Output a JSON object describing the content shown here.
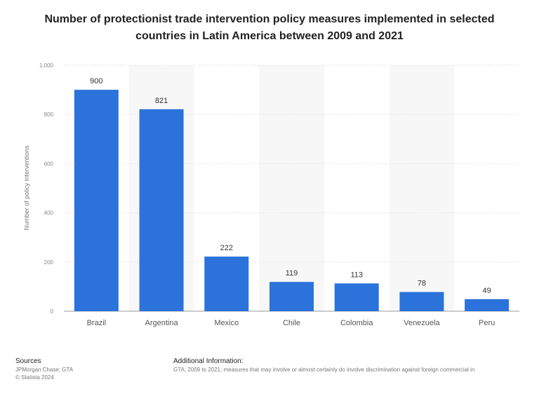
{
  "chart_data": {
    "type": "bar",
    "title": "Number of protectionist trade intervention policy measures implemented in selected countries in Latin America between 2009 and 2021",
    "xlabel": "",
    "ylabel": "Number of policy interventions",
    "categories": [
      "Brazil",
      "Argentina",
      "Mexico",
      "Chile",
      "Colombia",
      "Venezuela",
      "Peru"
    ],
    "values": [
      900,
      821,
      222,
      119,
      113,
      78,
      49
    ],
    "data_labels": [
      "900",
      "821",
      "222",
      "119",
      "113",
      "78",
      "49"
    ],
    "ylim": [
      0,
      1000
    ],
    "yticks": [
      0,
      200,
      400,
      600,
      800,
      1000
    ],
    "ytick_labels": [
      "0",
      "200",
      "400",
      "600",
      "800",
      "1,000"
    ],
    "grid": true,
    "legend": "none",
    "bar_color": "#2b73db",
    "alt_band_color": "#f7f7f7"
  },
  "footer": {
    "sources_heading": "Sources",
    "sources_lines": [
      "JPMorgan Chase; GTA",
      "© Statista 2024"
    ],
    "additional_heading": "Additional Information:",
    "additional_text": "GTA; 2009 to 2021; measures that may involve or almost certainly do involve discrimination against foreign commercial in"
  }
}
